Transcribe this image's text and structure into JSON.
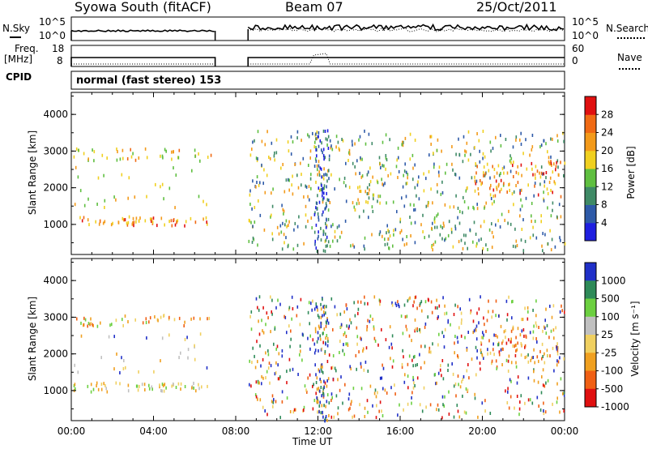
{
  "header": {
    "station": "Syowa South (fitACF)",
    "beam": "Beam 07",
    "date": "25/Oct/2011"
  },
  "strip_labels": {
    "nsky": "N.Sky",
    "nsky_ticks": [
      "10^5",
      "10^0"
    ],
    "nsearch": "N.Search",
    "nsearch_ticks": [
      "10^5",
      "10^0"
    ],
    "freq": "Freq.",
    "freq_unit": "[MHz]",
    "freq_ticks": [
      "18",
      "8"
    ],
    "nave": "Nave",
    "nave_ticks": [
      "60",
      "0"
    ],
    "cpid_label": "CPID",
    "cpid_value": "normal (fast stereo) 153"
  },
  "panels": [
    {
      "ylabel": "Slant Range [km]",
      "yticks": [
        "4000",
        "3000",
        "2000",
        "1000"
      ],
      "colorbar_label": "Power [dB]",
      "colorbar_ticks": [
        "28",
        "24",
        "20",
        "16",
        "12",
        "8",
        "4"
      ]
    },
    {
      "ylabel": "Slant Range [km]",
      "yticks": [
        "4000",
        "3000",
        "2000",
        "1000"
      ],
      "colorbar_label": "Velocity [m s⁻¹]",
      "colorbar_ticks": [
        "1000",
        "500",
        "100",
        "25",
        "-25",
        "-100",
        "-500",
        "-1000"
      ]
    }
  ],
  "xaxis": {
    "label": "Time UT",
    "ticks": [
      "00:00",
      "04:00",
      "08:00",
      "12:00",
      "16:00",
      "20:00",
      "00:00"
    ]
  },
  "chart_data": [
    {
      "type": "heatmap",
      "title": "Power [dB]",
      "xlabel": "Time UT",
      "ylabel": "Slant Range [km]",
      "xlim_hours": [
        0,
        24
      ],
      "ylim": [
        180,
        4600
      ],
      "data_gap_hours": [
        7.0,
        8.6
      ],
      "scale": [
        {
          "from": 0,
          "to": 4,
          "color": "#1f1fe0"
        },
        {
          "from": 4,
          "to": 8,
          "color": "#2e5aa8"
        },
        {
          "from": 8,
          "to": 12,
          "color": "#3f8a66"
        },
        {
          "from": 12,
          "to": 16,
          "color": "#5fbf40"
        },
        {
          "from": 16,
          "to": 20,
          "color": "#f0d020"
        },
        {
          "from": 20,
          "to": 24,
          "color": "#f39a1a"
        },
        {
          "from": 24,
          "to": 28,
          "color": "#f06a14"
        },
        {
          "from": 28,
          "to": 32,
          "color": "#e01010"
        }
      ],
      "clusters": [
        {
          "t": [
            0.1,
            6.8
          ],
          "r": [
            1000,
            1250
          ],
          "density": 60,
          "levels": [
            5,
            6,
            7,
            4
          ]
        },
        {
          "t": [
            0.1,
            6.8
          ],
          "r": [
            2750,
            3100
          ],
          "density": 45,
          "levels": [
            4,
            5,
            6,
            3
          ]
        },
        {
          "t": [
            0.1,
            6.8
          ],
          "r": [
            1500,
            2600
          ],
          "density": 30,
          "levels": [
            3,
            4,
            5
          ]
        },
        {
          "t": [
            8.6,
            24
          ],
          "r": [
            300,
            3600
          ],
          "density": 650,
          "levels": [
            1,
            2,
            3,
            4,
            5
          ]
        },
        {
          "t": [
            11.8,
            12.5
          ],
          "r": [
            200,
            3600
          ],
          "density": 90,
          "levels": [
            0,
            1,
            2
          ]
        },
        {
          "t": [
            19.5,
            23.8
          ],
          "r": [
            1800,
            2800
          ],
          "density": 80,
          "levels": [
            4,
            5,
            6,
            7
          ]
        }
      ]
    },
    {
      "type": "heatmap",
      "title": "Velocity [m s⁻¹]",
      "xlabel": "Time UT",
      "ylabel": "Slant Range [km]",
      "xlim_hours": [
        0,
        24
      ],
      "ylim": [
        180,
        4600
      ],
      "data_gap_hours": [
        7.0,
        8.6
      ],
      "scale": [
        {
          "from": 500,
          "to": 1000,
          "color": "#2030c8"
        },
        {
          "from": 100,
          "to": 500,
          "color": "#2e8a58"
        },
        {
          "from": 25,
          "to": 100,
          "color": "#6cd040"
        },
        {
          "from": -25,
          "to": 25,
          "color": "#c0c0c0"
        },
        {
          "from": -100,
          "to": -25,
          "color": "#f0d060"
        },
        {
          "from": -500,
          "to": -100,
          "color": "#f0a020"
        },
        {
          "from": -1000,
          "to": -500,
          "color": "#f06014"
        },
        {
          "from": -1500,
          "to": -1000,
          "color": "#e01010"
        }
      ],
      "clusters": [
        {
          "t": [
            0.1,
            6.8
          ],
          "r": [
            1000,
            1250
          ],
          "density": 60,
          "levels": [
            2,
            3,
            4,
            5
          ]
        },
        {
          "t": [
            0.1,
            6.8
          ],
          "r": [
            2750,
            3100
          ],
          "density": 45,
          "levels": [
            2,
            4,
            5,
            6
          ]
        },
        {
          "t": [
            0.1,
            6.8
          ],
          "r": [
            1500,
            2600
          ],
          "density": 30,
          "levels": [
            3,
            4,
            5,
            0
          ]
        },
        {
          "t": [
            8.6,
            24
          ],
          "r": [
            300,
            3600
          ],
          "density": 650,
          "levels": [
            0,
            1,
            2,
            4,
            5,
            6,
            7
          ]
        },
        {
          "t": [
            11.8,
            12.5
          ],
          "r": [
            200,
            3600
          ],
          "density": 90,
          "levels": [
            0,
            1,
            5
          ]
        },
        {
          "t": [
            19.5,
            23.8
          ],
          "r": [
            1800,
            2800
          ],
          "density": 80,
          "levels": [
            4,
            5,
            6,
            0
          ]
        }
      ]
    }
  ]
}
